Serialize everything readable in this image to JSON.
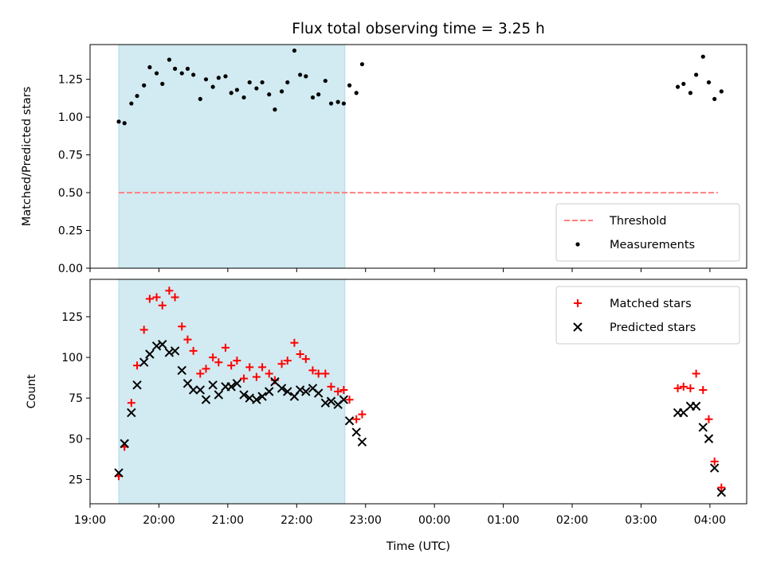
{
  "figure": {
    "title": "Flux total observing time = 3.25 h",
    "xlabel": "Time (UTC)"
  },
  "chart_data": [
    {
      "type": "scatter",
      "panel": "top",
      "ylabel": "Matched/Predicted stars",
      "xlim": [
        "19:00",
        "04:32"
      ],
      "ylim": [
        0,
        1.48
      ],
      "yticks": [
        "0.00",
        "0.25",
        "0.50",
        "0.75",
        "1.00",
        "1.25"
      ],
      "shaded_interval": [
        "19:25",
        "22:42"
      ],
      "shade_color": "#add8e6",
      "legend_position": "lower right",
      "threshold": {
        "name": "Threshold",
        "value": 0.5,
        "x_range": [
          "19:25",
          "04:07"
        ],
        "color": "#ff7f7f",
        "style": "dashed"
      },
      "series": [
        {
          "name": "Measurements",
          "marker": "dot",
          "color": "#000000",
          "points": [
            [
              "19:25",
              0.97
            ],
            [
              "19:30",
              0.96
            ],
            [
              "19:36",
              1.09
            ],
            [
              "19:41",
              1.14
            ],
            [
              "19:47",
              1.21
            ],
            [
              "19:52",
              1.33
            ],
            [
              "19:58",
              1.29
            ],
            [
              "20:03",
              1.22
            ],
            [
              "20:09",
              1.38
            ],
            [
              "20:14",
              1.32
            ],
            [
              "20:20",
              1.29
            ],
            [
              "20:25",
              1.32
            ],
            [
              "20:30",
              1.28
            ],
            [
              "20:36",
              1.12
            ],
            [
              "20:41",
              1.25
            ],
            [
              "20:47",
              1.2
            ],
            [
              "20:52",
              1.26
            ],
            [
              "20:58",
              1.27
            ],
            [
              "21:03",
              1.16
            ],
            [
              "21:08",
              1.18
            ],
            [
              "21:14",
              1.13
            ],
            [
              "21:19",
              1.23
            ],
            [
              "21:25",
              1.19
            ],
            [
              "21:30",
              1.23
            ],
            [
              "21:36",
              1.15
            ],
            [
              "21:41",
              1.05
            ],
            [
              "21:47",
              1.17
            ],
            [
              "21:52",
              1.23
            ],
            [
              "21:58",
              1.44
            ],
            [
              "22:03",
              1.28
            ],
            [
              "22:08",
              1.27
            ],
            [
              "22:14",
              1.13
            ],
            [
              "22:19",
              1.15
            ],
            [
              "22:25",
              1.24
            ],
            [
              "22:30",
              1.09
            ],
            [
              "22:36",
              1.1
            ],
            [
              "22:41",
              1.09
            ],
            [
              "22:46",
              1.21
            ],
            [
              "22:52",
              1.16
            ],
            [
              "22:57",
              1.35
            ],
            [
              "03:32",
              1.2
            ],
            [
              "03:37",
              1.22
            ],
            [
              "03:43",
              1.16
            ],
            [
              "03:48",
              1.28
            ],
            [
              "03:54",
              1.4
            ],
            [
              "03:59",
              1.23
            ],
            [
              "04:04",
              1.12
            ],
            [
              "04:10",
              1.17
            ]
          ]
        }
      ]
    },
    {
      "type": "scatter",
      "panel": "bottom",
      "ylabel": "Count",
      "xlabel": "Time (UTC)",
      "xlim": [
        "19:00",
        "04:32"
      ],
      "ylim": [
        10,
        148
      ],
      "yticks": [
        "25",
        "50",
        "75",
        "100",
        "125"
      ],
      "xticks": [
        "19:00",
        "20:00",
        "21:00",
        "22:00",
        "23:00",
        "00:00",
        "01:00",
        "02:00",
        "03:00",
        "04:00"
      ],
      "shaded_interval": [
        "19:25",
        "22:42"
      ],
      "shade_color": "#add8e6",
      "legend_position": "upper right",
      "series": [
        {
          "name": "Matched stars",
          "marker": "plus",
          "color": "#ff0000",
          "points": [
            [
              "19:25",
              27
            ],
            [
              "19:30",
              45
            ],
            [
              "19:36",
              72
            ],
            [
              "19:41",
              95
            ],
            [
              "19:47",
              117
            ],
            [
              "19:52",
              136
            ],
            [
              "19:58",
              137
            ],
            [
              "20:03",
              132
            ],
            [
              "20:09",
              141
            ],
            [
              "20:14",
              137
            ],
            [
              "20:20",
              119
            ],
            [
              "20:25",
              111
            ],
            [
              "20:30",
              104
            ],
            [
              "20:36",
              90
            ],
            [
              "20:41",
              93
            ],
            [
              "20:47",
              100
            ],
            [
              "20:52",
              97
            ],
            [
              "20:58",
              106
            ],
            [
              "21:03",
              95
            ],
            [
              "21:08",
              98
            ],
            [
              "21:14",
              87
            ],
            [
              "21:19",
              94
            ],
            [
              "21:25",
              88
            ],
            [
              "21:30",
              94
            ],
            [
              "21:36",
              90
            ],
            [
              "21:41",
              86
            ],
            [
              "21:47",
              96
            ],
            [
              "21:52",
              98
            ],
            [
              "21:58",
              109
            ],
            [
              "22:03",
              102
            ],
            [
              "22:08",
              99
            ],
            [
              "22:14",
              92
            ],
            [
              "22:19",
              90
            ],
            [
              "22:25",
              90
            ],
            [
              "22:30",
              82
            ],
            [
              "22:36",
              79
            ],
            [
              "22:41",
              80
            ],
            [
              "22:46",
              74
            ],
            [
              "22:52",
              62
            ],
            [
              "22:57",
              65
            ],
            [
              "03:32",
              81
            ],
            [
              "03:37",
              82
            ],
            [
              "03:43",
              81
            ],
            [
              "03:48",
              90
            ],
            [
              "03:54",
              80
            ],
            [
              "03:59",
              62
            ],
            [
              "04:04",
              36
            ],
            [
              "04:10",
              20
            ]
          ]
        },
        {
          "name": "Predicted stars",
          "marker": "x",
          "color": "#000000",
          "points": [
            [
              "19:25",
              29
            ],
            [
              "19:30",
              47
            ],
            [
              "19:36",
              66
            ],
            [
              "19:41",
              83
            ],
            [
              "19:47",
              97
            ],
            [
              "19:52",
              102
            ],
            [
              "19:58",
              107
            ],
            [
              "20:03",
              108
            ],
            [
              "20:09",
              103
            ],
            [
              "20:14",
              104
            ],
            [
              "20:20",
              92
            ],
            [
              "20:25",
              84
            ],
            [
              "20:30",
              80
            ],
            [
              "20:36",
              80
            ],
            [
              "20:41",
              74
            ],
            [
              "20:47",
              83
            ],
            [
              "20:52",
              77
            ],
            [
              "20:58",
              82
            ],
            [
              "21:03",
              82
            ],
            [
              "21:08",
              84
            ],
            [
              "21:14",
              77
            ],
            [
              "21:19",
              75
            ],
            [
              "21:25",
              74
            ],
            [
              "21:30",
              76
            ],
            [
              "21:36",
              79
            ],
            [
              "21:41",
              85
            ],
            [
              "21:47",
              81
            ],
            [
              "21:52",
              79
            ],
            [
              "21:58",
              76
            ],
            [
              "22:03",
              80
            ],
            [
              "22:08",
              79
            ],
            [
              "22:14",
              81
            ],
            [
              "22:19",
              78
            ],
            [
              "22:25",
              72
            ],
            [
              "22:30",
              73
            ],
            [
              "22:36",
              71
            ],
            [
              "22:41",
              74
            ],
            [
              "22:46",
              61
            ],
            [
              "22:52",
              54
            ],
            [
              "22:57",
              48
            ],
            [
              "03:32",
              66
            ],
            [
              "03:37",
              66
            ],
            [
              "03:43",
              70
            ],
            [
              "03:48",
              70
            ],
            [
              "03:54",
              57
            ],
            [
              "03:59",
              50
            ],
            [
              "04:04",
              32
            ],
            [
              "04:10",
              17
            ]
          ]
        }
      ]
    }
  ]
}
